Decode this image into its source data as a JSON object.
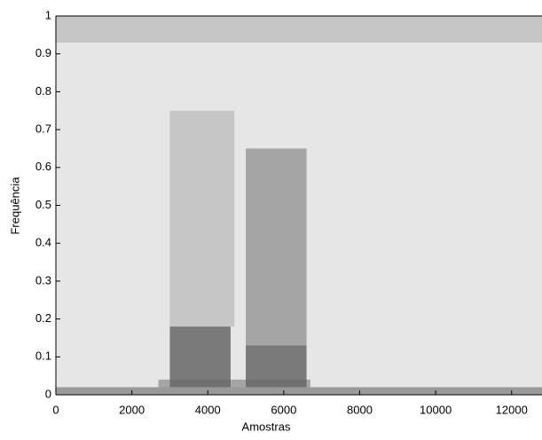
{
  "chart_data": {
    "type": "spectrogram",
    "xlabel": "Amostras",
    "ylabel": "Frequência",
    "xlim": [
      0,
      12800
    ],
    "ylim": [
      0,
      1
    ],
    "xticks": [
      0,
      2000,
      4000,
      6000,
      8000,
      10000,
      12000
    ],
    "yticks": [
      0,
      0.1,
      0.2,
      0.3,
      0.4,
      0.5,
      0.6,
      0.7,
      0.8,
      0.9,
      1
    ],
    "background_level": 0.1,
    "regions": [
      {
        "x": [
          0,
          12800
        ],
        "y": [
          0,
          0.02
        ],
        "level": 0.45
      },
      {
        "x": [
          2700,
          6700
        ],
        "y": [
          0,
          0.04
        ],
        "level": 0.4
      },
      {
        "x": [
          3000,
          4700
        ],
        "y": [
          0.18,
          0.75
        ],
        "level": 0.25
      },
      {
        "x": [
          3000,
          4600
        ],
        "y": [
          0.02,
          0.18
        ],
        "level": 0.6
      },
      {
        "x": [
          5000,
          6600
        ],
        "y": [
          0.13,
          0.65
        ],
        "level": 0.4
      },
      {
        "x": [
          5000,
          6600
        ],
        "y": [
          0.02,
          0.13
        ],
        "level": 0.6
      },
      {
        "x": [
          0,
          12800
        ],
        "y": [
          0.93,
          1
        ],
        "level": 0.25
      }
    ]
  }
}
